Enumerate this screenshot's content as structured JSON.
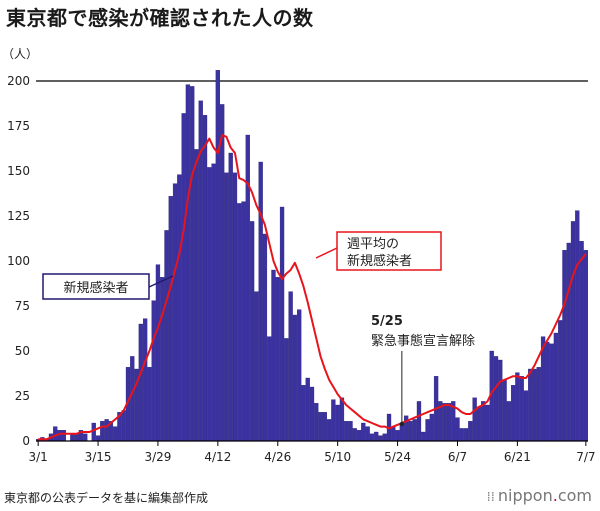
{
  "title": "東京都で感染が確認された人の数",
  "source": "東京都の公表データを基に編集部作成",
  "brand": {
    "name_left": "nippon",
    "dot": ".",
    "name_right": "com",
    "mark": "⁞⁞"
  },
  "colors": {
    "bars": "#3b32a0",
    "bar_edge": "#20196e",
    "line": "#e8141c",
    "grid": "#000000"
  },
  "chart_data": {
    "type": "bar",
    "unit_label": "（人）",
    "ylim": [
      0,
      200
    ],
    "y_ticks": [
      0,
      25,
      50,
      75,
      100,
      125,
      150,
      175,
      200
    ],
    "x_tick_labels": [
      "3/1",
      "3/15",
      "3/29",
      "4/12",
      "4/26",
      "5/10",
      "5/24",
      "6/7",
      "6/21",
      "7/7"
    ],
    "x_tick_index": [
      0,
      14,
      28,
      42,
      56,
      70,
      84,
      98,
      112,
      128
    ],
    "start_date": "3/1",
    "end_date": "7/7",
    "series": [
      {
        "name": "新規感染者",
        "type": "bar",
        "values": [
          1,
          2,
          1,
          4,
          8,
          6,
          6,
          0,
          4,
          4,
          6,
          4,
          0,
          10,
          3,
          11,
          12,
          11,
          8,
          16,
          17,
          41,
          47,
          40,
          65,
          68,
          41,
          78,
          98,
          91,
          117,
          136,
          143,
          148,
          182,
          198,
          197,
          162,
          189,
          181,
          152,
          154,
          206,
          187,
          149,
          160,
          149,
          132,
          133,
          170,
          122,
          83,
          155,
          115,
          58,
          95,
          91,
          130,
          57,
          83,
          70,
          73,
          31,
          35,
          30,
          21,
          16,
          16,
          12,
          23,
          20,
          24,
          11,
          11,
          7,
          6,
          10,
          8,
          4,
          5,
          3,
          4,
          15,
          8,
          6,
          10,
          14,
          11,
          12,
          22,
          5,
          12,
          15,
          36,
          22,
          21,
          21,
          22,
          13,
          7,
          7,
          11,
          24,
          19,
          22,
          20,
          50,
          47,
          45,
          34,
          22,
          31,
          38,
          36,
          28,
          40,
          40,
          41,
          58,
          55,
          54,
          60,
          67,
          106,
          110,
          122,
          128,
          111,
          106
        ]
      },
      {
        "name": "週平均の\n新規感染者",
        "type": "line",
        "values": [
          1,
          1,
          1,
          2,
          3,
          4,
          4,
          4,
          4,
          4,
          5,
          5,
          5,
          6,
          7,
          8,
          8,
          10,
          12,
          14,
          17,
          22,
          27,
          32,
          38,
          44,
          50,
          57,
          63,
          70,
          78,
          86,
          95,
          104,
          117,
          135,
          148,
          155,
          161,
          164,
          168,
          163,
          160,
          170,
          169,
          163,
          160,
          146,
          145,
          143,
          138,
          131,
          126,
          120,
          110,
          100,
          94,
          90,
          93,
          95,
          99,
          93,
          86,
          77,
          67,
          57,
          47,
          40,
          34,
          30,
          26,
          23,
          20,
          18,
          16,
          14,
          12,
          11,
          10,
          9,
          8,
          8,
          7,
          8,
          9,
          10,
          11,
          12,
          13,
          14,
          15,
          16,
          17,
          18,
          19,
          20,
          20,
          19,
          18,
          16,
          15,
          15,
          17,
          19,
          20,
          22,
          27,
          30,
          33,
          34,
          35,
          36,
          36,
          35,
          35,
          38,
          42,
          47,
          52,
          56,
          60,
          65,
          70,
          76,
          84,
          92,
          98,
          101,
          104
        ]
      }
    ],
    "annotations": [
      {
        "date": "5/25",
        "text": "緊急事態宣言解除",
        "index": 85
      }
    ]
  }
}
